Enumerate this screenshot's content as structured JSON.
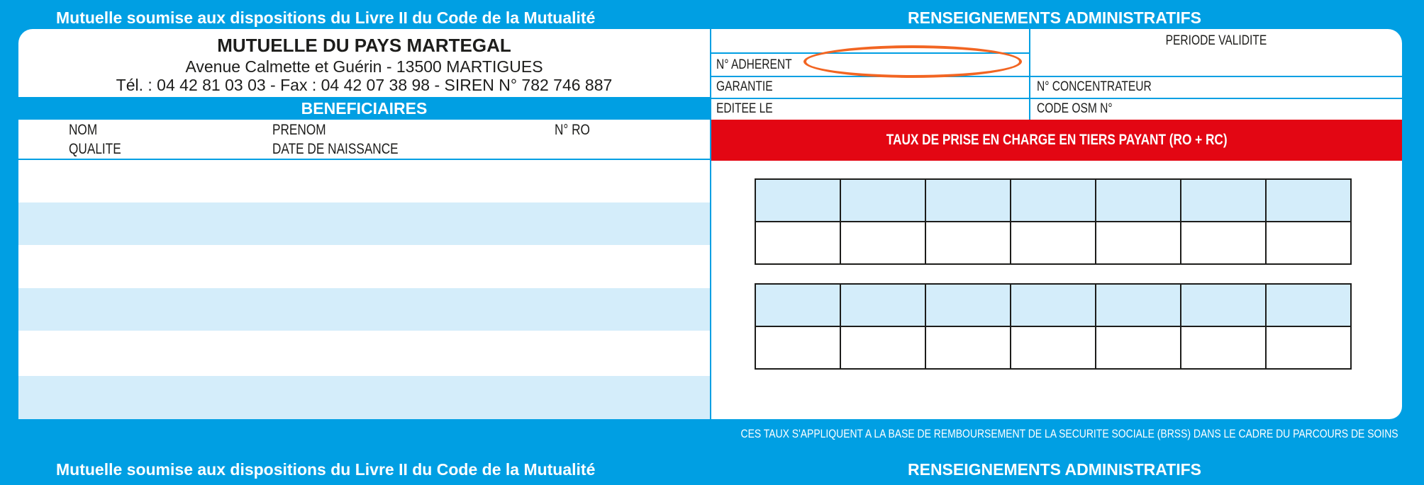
{
  "top_banner": {
    "left": "Mutuelle soumise aux dispositions du Livre II du Code de la Mutualité",
    "right": "RENSEIGNEMENTS ADMINISTRATIFS"
  },
  "organization": {
    "name": "MUTUELLE DU PAYS MARTEGAL",
    "address": "Avenue Calmette et Guérin - 13500 MARTIGUES",
    "contact": "Tél. : 04 42 81 03 03 - Fax : 04 42 07 38 98 - SIREN N° 782 746 887"
  },
  "beneficiaries": {
    "title": "BENEFICIAIRES",
    "col1": {
      "line1": "NOM",
      "line2": "QUALITE"
    },
    "col2": {
      "line1": "PRENOM",
      "line2": "DATE DE NAISSANCE"
    },
    "col3": {
      "line1": "N° RO"
    },
    "rows": 6
  },
  "admin": {
    "adherent": "N° ADHERENT",
    "periode": "PERIODE VALIDITE",
    "garantie": "GARANTIE",
    "concentrateur": "N° CONCENTRATEUR",
    "editee": "EDITEE LE",
    "osm": "CODE OSM N°"
  },
  "rates": {
    "title": "TAUX DE PRISE EN CHARGE EN TIERS PAYANT (RO + RC)",
    "tables": 2,
    "columns": 7
  },
  "footnote": "CES TAUX S'APPLIQUENT A LA BASE DE REMBOURSEMENT DE LA SECURITE SOCIALE (BRSS) DANS LE CADRE DU PARCOURS DE SOINS",
  "bottom_banner": {
    "left": "Mutuelle soumise aux dispositions du Livre II du Code de la Mutualité",
    "right": "RENSEIGNEMENTS ADMINISTRATIFS"
  },
  "colors": {
    "brand_blue": "#009fe3",
    "light_blue": "#d4edfa",
    "red": "#e30613",
    "highlight_orange": "#f26522"
  }
}
